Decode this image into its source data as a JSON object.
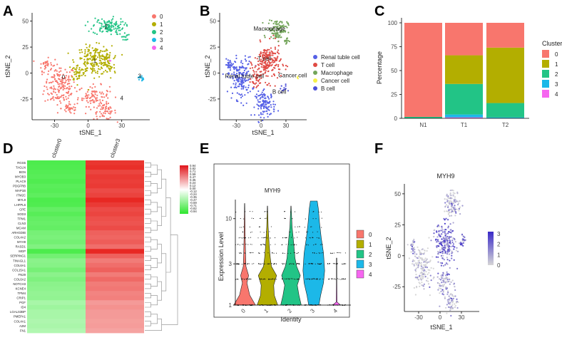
{
  "colors": {
    "c0": "#F8766D",
    "c1": "#B3AE00",
    "c2": "#22C486",
    "c3": "#1CB8E8",
    "c4": "#F666F0",
    "renal": "#5560E6",
    "tcell": "#E04A44",
    "macro": "#73A55A",
    "cancer": "#F6F04A",
    "bcell": "#4C4FD8",
    "heat_green": "#3DEA3D",
    "heat_red": "#E8241E",
    "feat_purple": "#5A3EC8",
    "feat_grey": "#D6D6D6"
  },
  "panel_labels": [
    "A",
    "B",
    "C",
    "D",
    "E",
    "F"
  ],
  "chart_data": [
    {
      "id": "A",
      "type": "scatter",
      "xlabel": "tSNE_1",
      "ylabel": "tSNE_2",
      "xticks": [
        -30,
        0,
        30
      ],
      "yticks": [
        -25,
        0,
        25,
        50
      ],
      "xlim": [
        -50,
        55
      ],
      "ylim": [
        -45,
        58
      ],
      "legend": [
        "0",
        "1",
        "2",
        "3",
        "4"
      ],
      "cluster_labels": [
        {
          "text": "0",
          "x": -22,
          "y": -6
        },
        {
          "text": "1",
          "x": 6,
          "y": 10
        },
        {
          "text": "2",
          "x": 16,
          "y": 43
        },
        {
          "text": "3",
          "x": 46,
          "y": -5
        },
        {
          "text": "4",
          "x": 30,
          "y": -26
        }
      ],
      "clusters": [
        {
          "group": 0,
          "x": -25,
          "y": -12,
          "sx": 7,
          "sy": 10,
          "n": 170
        },
        {
          "group": 0,
          "x": -38,
          "y": 8,
          "sx": 3,
          "sy": 3,
          "n": 30
        },
        {
          "group": 0,
          "x": 5,
          "y": -22,
          "sx": 7,
          "sy": 5,
          "n": 90
        },
        {
          "group": 0,
          "x": 15,
          "y": -37,
          "sx": 5,
          "sy": 4,
          "n": 60
        },
        {
          "group": 0,
          "x": -16,
          "y": -34,
          "sx": 4,
          "sy": 3,
          "n": 35
        },
        {
          "group": 1,
          "x": 5,
          "y": 12,
          "sx": 8,
          "sy": 7,
          "n": 200
        },
        {
          "group": 1,
          "x": 18,
          "y": 8,
          "sx": 3,
          "sy": 7,
          "n": 50
        },
        {
          "group": 1,
          "x": -9,
          "y": 0,
          "sx": 3,
          "sy": 4,
          "n": 40
        },
        {
          "group": 2,
          "x": 18,
          "y": 45,
          "sx": 7,
          "sy": 4,
          "n": 120
        },
        {
          "group": 2,
          "x": 33,
          "y": 35,
          "sx": 1.5,
          "sy": 2,
          "n": 15
        },
        {
          "group": 3,
          "x": 47,
          "y": -5,
          "sx": 1.2,
          "sy": 1.5,
          "n": 14
        },
        {
          "group": 4,
          "x": 20,
          "y": 12,
          "sx": 0.6,
          "sy": 0.6,
          "n": 2
        }
      ]
    },
    {
      "id": "B",
      "type": "scatter",
      "xlabel": "tSNE_1",
      "ylabel": "tSNE_2",
      "xticks": [
        -30,
        0,
        30
      ],
      "yticks": [
        -25,
        0,
        25,
        50
      ],
      "xlim": [
        -50,
        55
      ],
      "ylim": [
        -45,
        58
      ],
      "legend": [
        "Renal tuble cell",
        "T cell",
        "Macrophage",
        "Cancer cell",
        "B cell"
      ],
      "cluster_labels": [
        {
          "text": "Macrophage",
          "x": 10,
          "y": 41
        },
        {
          "text": "T cell",
          "x": 4,
          "y": 12
        },
        {
          "text": "Renal tuble cell",
          "x": -20,
          "y": -5
        },
        {
          "text": "Cancer cell",
          "x": 38,
          "y": -4
        },
        {
          "text": "B cell",
          "x": 22,
          "y": -20
        }
      ],
      "clusters": [
        {
          "group": 0,
          "x": -25,
          "y": -5,
          "sx": 7,
          "sy": 10,
          "n": 170
        },
        {
          "group": 0,
          "x": -38,
          "y": 8,
          "sx": 2.5,
          "sy": 2.5,
          "n": 25
        },
        {
          "group": 0,
          "x": 5,
          "y": -30,
          "sx": 6,
          "sy": 6,
          "n": 120
        },
        {
          "group": 1,
          "x": 8,
          "y": 10,
          "sx": 8,
          "sy": 9,
          "n": 210
        },
        {
          "group": 1,
          "x": -6,
          "y": -5,
          "sx": 3,
          "sy": 4,
          "n": 40
        },
        {
          "group": 2,
          "x": 20,
          "y": 42,
          "sx": 6,
          "sy": 5,
          "n": 110
        },
        {
          "group": 2,
          "x": 30,
          "y": 31,
          "sx": 1.5,
          "sy": 2,
          "n": 15
        },
        {
          "group": 3,
          "x": 44,
          "y": -5,
          "sx": 0.6,
          "sy": 0.8,
          "n": 3
        },
        {
          "group": 4,
          "x": 27,
          "y": -15,
          "sx": 2,
          "sy": 2,
          "n": 12
        }
      ]
    },
    {
      "id": "C",
      "type": "bar",
      "ylabel": "Percentage",
      "categories": [
        "N1",
        "T1",
        "T2"
      ],
      "yticks": [
        0,
        25,
        50,
        75,
        100
      ],
      "ylim": [
        0,
        100
      ],
      "legend_title": "Cluster",
      "legend": [
        "0",
        "1",
        "2",
        "3",
        "4"
      ],
      "series": [
        {
          "name": "0",
          "values": [
            98.5,
            34,
            26
          ]
        },
        {
          "name": "1",
          "values": [
            0,
            30,
            58
          ]
        },
        {
          "name": "2",
          "values": [
            1.5,
            32,
            15
          ]
        },
        {
          "name": "3",
          "values": [
            0,
            3,
            1
          ]
        },
        {
          "name": "4",
          "values": [
            0,
            1,
            0
          ]
        }
      ]
    },
    {
      "id": "D",
      "type": "heatmap",
      "columns": [
        "cluster0",
        "cluster3"
      ],
      "rows": [
        "RGS5",
        "TAGLN",
        "BGN",
        "MYOB3",
        "PLAC9",
        "PDGFRB",
        "MAP1B",
        "ITM2C",
        "MYL9",
        "LHFPL6",
        "CPE",
        "SOD3",
        "TPM1",
        "CLN3",
        "MCAM",
        "ARHGDIB",
        "COL4A2",
        "MYH9",
        "RASD1",
        "MGP",
        "SERPING1",
        "TINAGL1",
        "COL6A1",
        "COL15A1",
        "FN29",
        "COL6A2",
        "NOTCH3",
        "KCNE4",
        "TPM4",
        "CRIP1",
        "PGF",
        "ID4",
        "LGALS3BP",
        "PMEPA1",
        "COL4A1",
        "A2M",
        "FN1"
      ],
      "values": [
        [
          -0.92,
          0.92
        ],
        [
          -0.9,
          0.95
        ],
        [
          -0.88,
          0.85
        ],
        [
          -0.86,
          0.9
        ],
        [
          -0.9,
          0.88
        ],
        [
          -0.85,
          0.9
        ],
        [
          -0.87,
          0.82
        ],
        [
          -0.83,
          0.86
        ],
        [
          -0.92,
          0.98
        ],
        [
          -0.9,
          0.9
        ],
        [
          -0.8,
          0.82
        ],
        [
          -0.86,
          0.85
        ],
        [
          -0.8,
          0.8
        ],
        [
          -0.78,
          0.78
        ],
        [
          -0.8,
          0.82
        ],
        [
          -0.7,
          0.72
        ],
        [
          -0.68,
          0.7
        ],
        [
          -0.72,
          0.74
        ],
        [
          -0.65,
          0.66
        ],
        [
          -0.92,
          0.98
        ],
        [
          -0.72,
          0.72
        ],
        [
          -0.6,
          0.6
        ],
        [
          -0.62,
          0.66
        ],
        [
          -0.7,
          0.72
        ],
        [
          -0.6,
          0.6
        ],
        [
          -0.66,
          0.68
        ],
        [
          -0.6,
          0.6
        ],
        [
          -0.58,
          0.62
        ],
        [
          -0.55,
          0.56
        ],
        [
          -0.56,
          0.58
        ],
        [
          -0.45,
          0.46
        ],
        [
          -0.5,
          0.5
        ],
        [
          -0.45,
          0.46
        ],
        [
          -0.45,
          0.46
        ],
        [
          -0.42,
          0.44
        ],
        [
          -0.44,
          0.45
        ],
        [
          -0.4,
          0.42
        ]
      ],
      "scale_ticks": [
        "0.94",
        "0.82",
        "0.71",
        "0.59",
        "0.47",
        "0.35",
        "0.24",
        "0.12",
        "0.00",
        "-0.12",
        "-0.24",
        "-0.35",
        "-0.47",
        "-0.59",
        "-0.71",
        "-0.82",
        "-0.94"
      ]
    },
    {
      "id": "E",
      "type": "violin",
      "title": "MYH9",
      "xlabel": "Identity",
      "ylabel": "Expression Level",
      "categories": [
        "0",
        "1",
        "2",
        "3",
        "4"
      ],
      "yticks": [
        1,
        3,
        10
      ],
      "ylim": [
        1,
        16
      ],
      "yscale": "log",
      "legend": [
        "0",
        "1",
        "2",
        "3",
        "4"
      ],
      "dot_levels": [
        1,
        2,
        3,
        4,
        5,
        6,
        7,
        8,
        10,
        12
      ],
      "widths": [
        [
          [
            1,
            0.95
          ],
          [
            1.3,
            0.45
          ],
          [
            1.8,
            0.2
          ],
          [
            2.2,
            0.35
          ],
          [
            2.8,
            0.12
          ],
          [
            4,
            0.08
          ],
          [
            6,
            0.05
          ],
          [
            10,
            0.03
          ],
          [
            15,
            0.01
          ]
        ],
        [
          [
            1,
            0.9
          ],
          [
            1.3,
            0.6
          ],
          [
            1.7,
            0.55
          ],
          [
            2.2,
            0.8
          ],
          [
            2.8,
            0.35
          ],
          [
            3.5,
            0.25
          ],
          [
            5,
            0.15
          ],
          [
            8,
            0.06
          ],
          [
            14,
            0.01
          ]
        ],
        [
          [
            1,
            0.9
          ],
          [
            1.3,
            0.7
          ],
          [
            1.7,
            0.55
          ],
          [
            2.2,
            0.82
          ],
          [
            2.8,
            0.5
          ],
          [
            3.5,
            0.35
          ],
          [
            5,
            0.25
          ],
          [
            8,
            0.1
          ],
          [
            14,
            0.01
          ]
        ],
        [
          [
            1,
            0.45
          ],
          [
            1.3,
            0.6
          ],
          [
            1.8,
            0.85
          ],
          [
            2.5,
            0.95
          ],
          [
            4,
            0.85
          ],
          [
            6,
            0.65
          ],
          [
            9,
            0.5
          ],
          [
            13,
            0.4
          ],
          [
            16,
            0.3
          ]
        ],
        [
          [
            1,
            0.35
          ],
          [
            1.08,
            0.04
          ],
          [
            2,
            0.02
          ],
          [
            3.5,
            0.02
          ]
        ]
      ]
    },
    {
      "id": "F",
      "type": "scatter",
      "title": "MYH9",
      "xlabel": "tSNE_1",
      "ylabel": "tSNE_2",
      "xticks": [
        -30,
        0,
        30
      ],
      "yticks": [
        -25,
        0,
        25,
        50
      ],
      "xlim": [
        -50,
        55
      ],
      "ylim": [
        -45,
        58
      ],
      "scale_ticks": [
        0,
        1,
        2,
        3
      ],
      "scale_range": [
        0,
        3.2
      ],
      "clusters": [
        {
          "x": -25,
          "y": -10,
          "sx": 6,
          "sy": 9,
          "n": 160,
          "expr": 0.15
        },
        {
          "x": -38,
          "y": 8,
          "sx": 2.5,
          "sy": 2.5,
          "n": 25,
          "expr": 0.9
        },
        {
          "x": 6,
          "y": 10,
          "sx": 8,
          "sy": 8,
          "n": 200,
          "expr": 1.7
        },
        {
          "x": 18,
          "y": 42,
          "sx": 6,
          "sy": 5,
          "n": 110,
          "expr": 0.6
        },
        {
          "x": 5,
          "y": -22,
          "sx": 6,
          "sy": 5,
          "n": 80,
          "expr": 0.9
        },
        {
          "x": 15,
          "y": -37,
          "sx": 5,
          "sy": 4,
          "n": 60,
          "expr": 0.5
        },
        {
          "x": 32,
          "y": 12,
          "sx": 2,
          "sy": 3,
          "n": 25,
          "expr": 2.1
        }
      ]
    }
  ]
}
